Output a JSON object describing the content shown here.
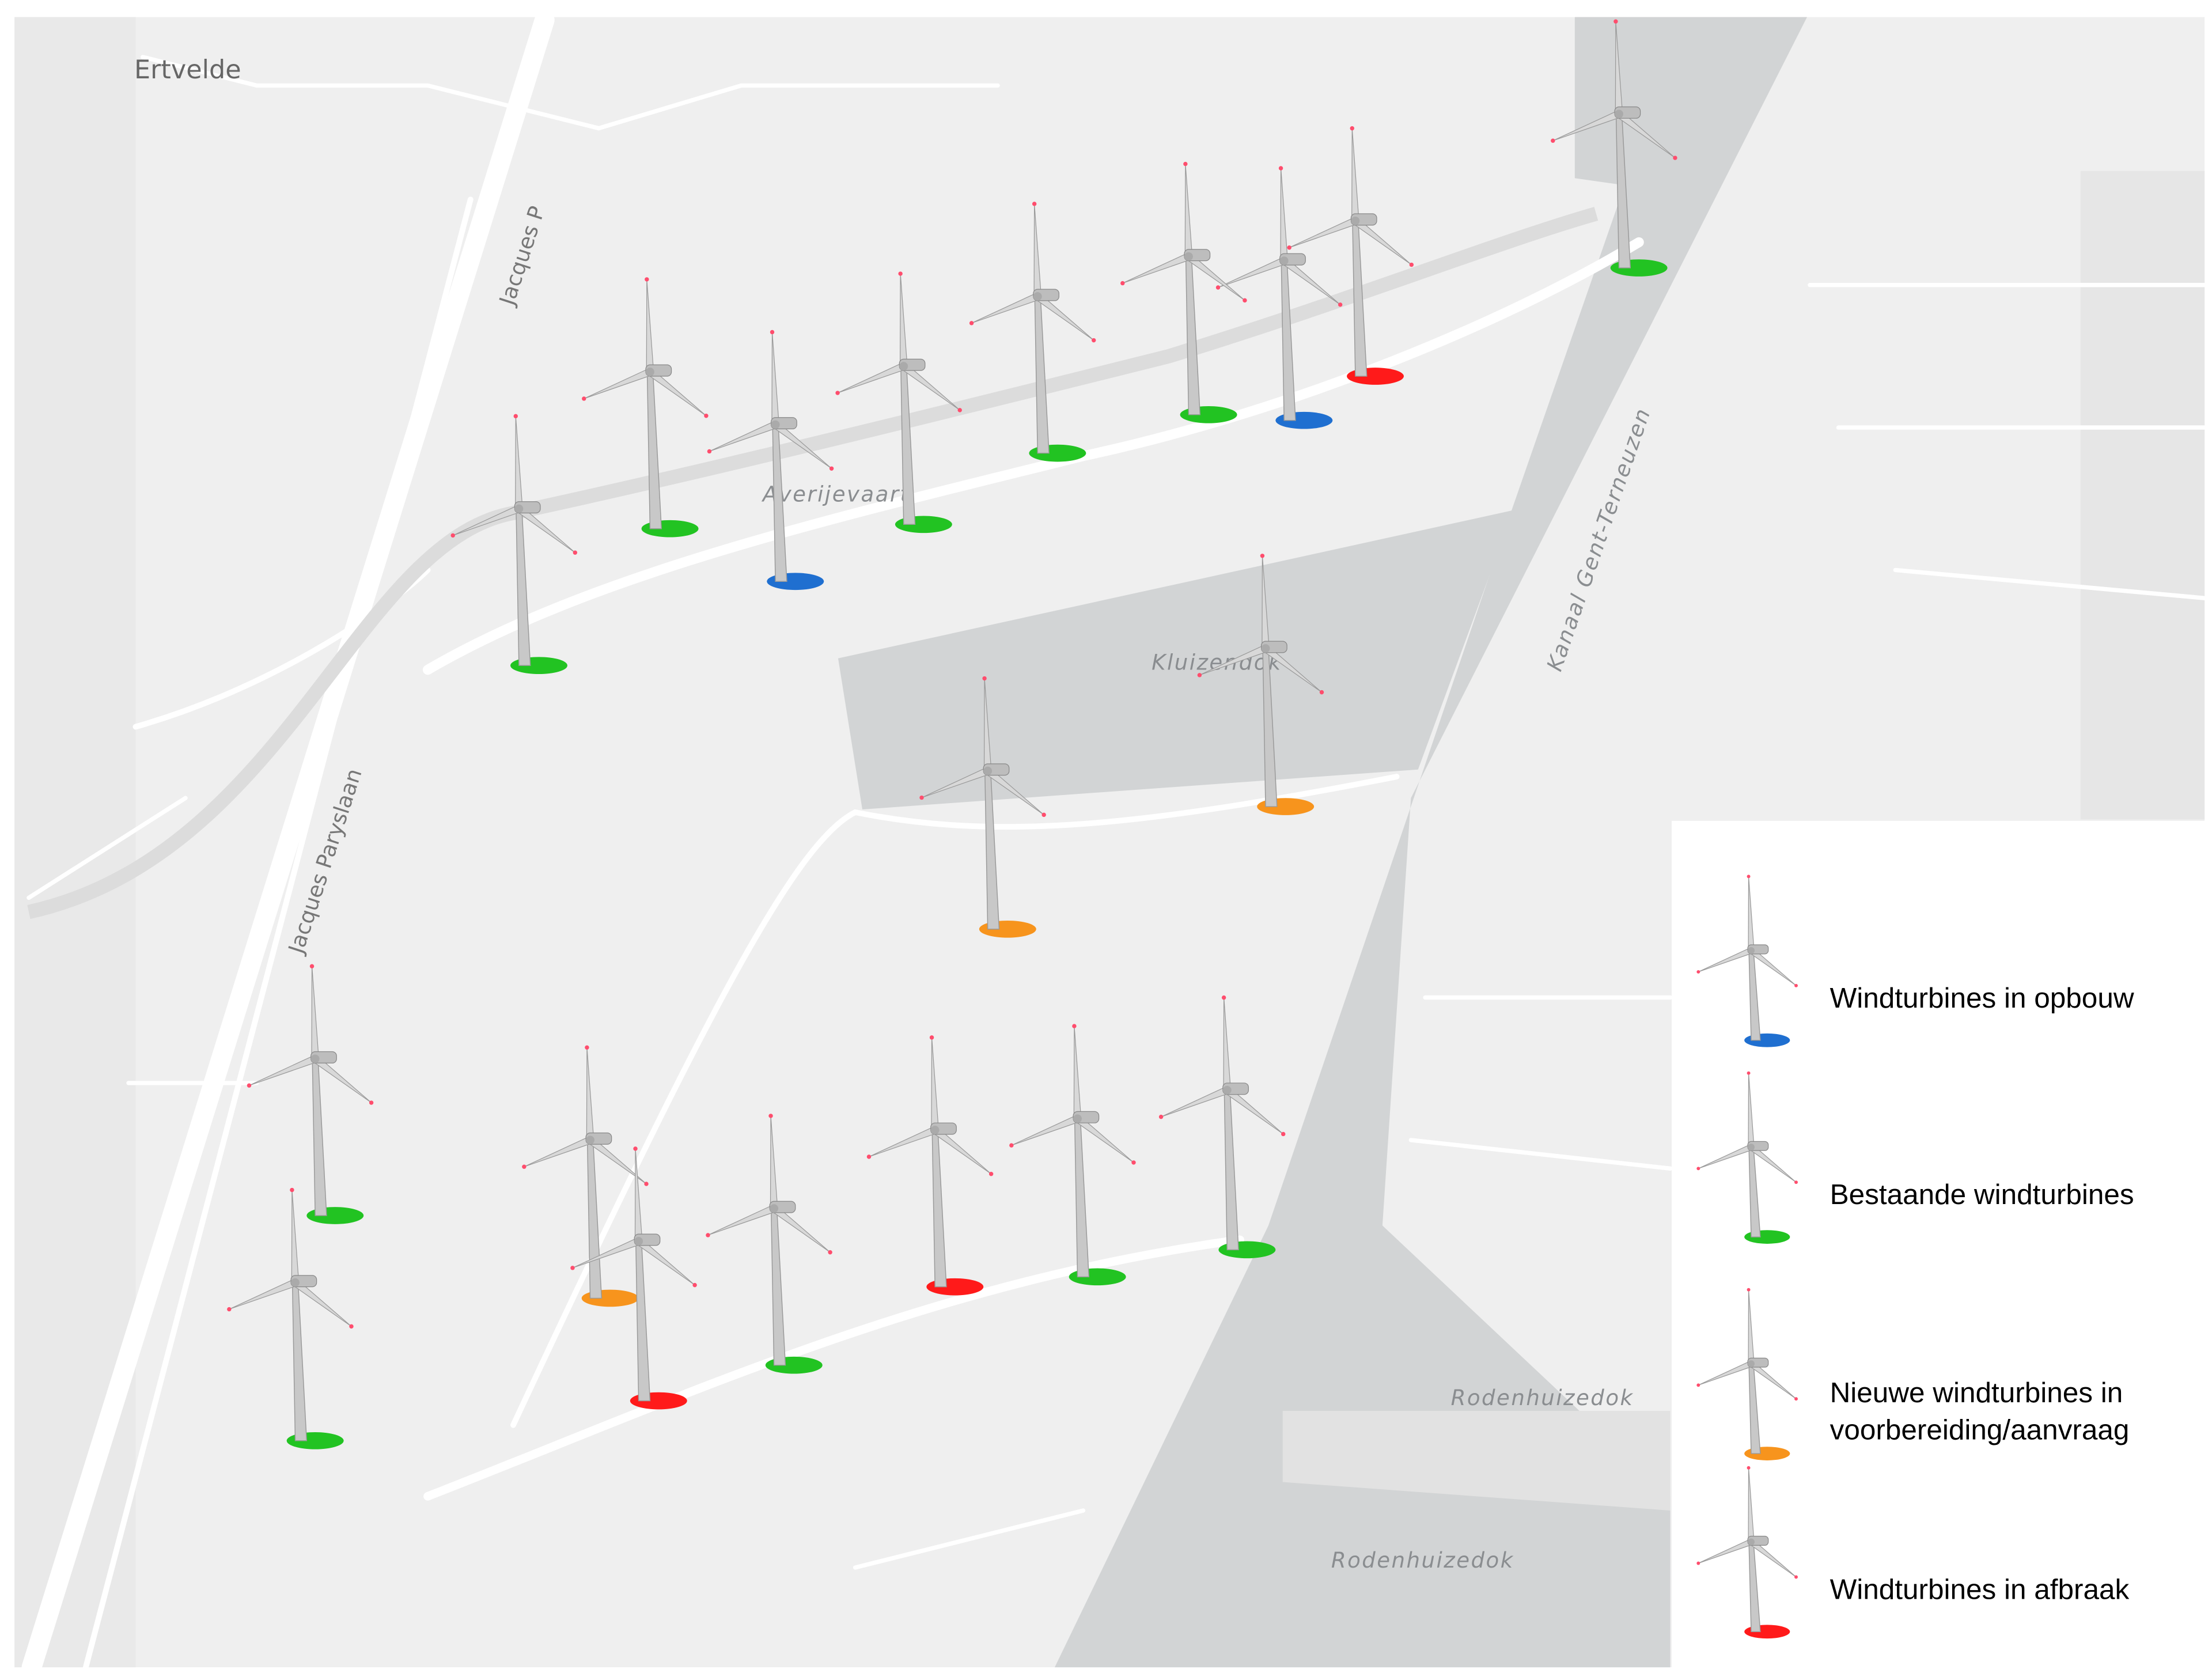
{
  "map": {
    "labels": {
      "town": "Ertvelde",
      "street_top": "Jacques P",
      "street": "Jacques Paryslaan",
      "waterway": "Averijevaart",
      "dock": "Kluizendok",
      "canal": "Kanaal Gent-Terneuzen",
      "dock_south_1": "Rodenhuizedok",
      "dock_south_2": "Rodenhuizedok"
    },
    "legend": [
      {
        "lines": [
          "Windturbines in opbouw"
        ],
        "color": "#1f6fd0"
      },
      {
        "lines": [
          "Bestaande windturbines"
        ],
        "color": "#22c322"
      },
      {
        "lines": [
          "Nieuwe windturbines in",
          "voorbereiding/aanvraag"
        ],
        "color": "#f7941d"
      },
      {
        "lines": [
          "Windturbines in afbraak"
        ],
        "color": "#ff1a1a"
      }
    ]
  }
}
